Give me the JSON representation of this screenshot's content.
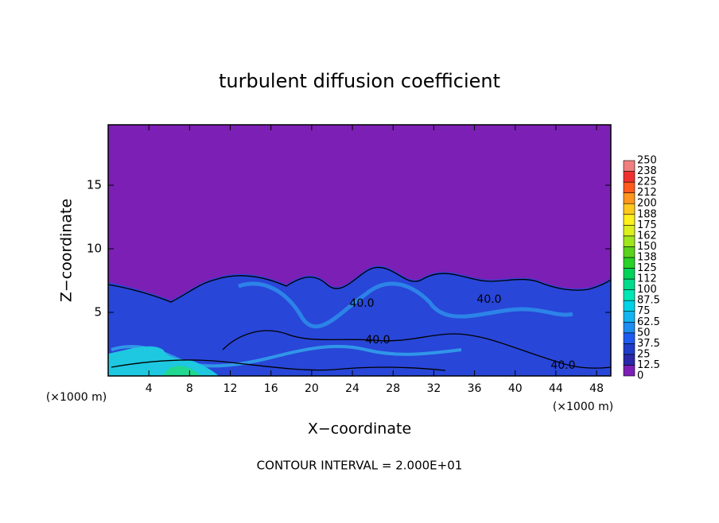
{
  "chart_data": {
    "type": "contour",
    "title": "turbulent diffusion coefficient",
    "xlabel": "X−coordinate",
    "ylabel": "Z−coordinate",
    "x_unit_label": "(×1000 m)",
    "xlim": [
      0,
      49.4
    ],
    "xticks": [
      4,
      8,
      12,
      16,
      20,
      24,
      28,
      32,
      36,
      40,
      44,
      48
    ],
    "ylim": [
      0,
      19.75
    ],
    "yticks": [
      5,
      10,
      15
    ],
    "colorbar_ticks": [
      0,
      12.5,
      25,
      37.5,
      50,
      62.5,
      75,
      87.5,
      100,
      112,
      125,
      138,
      150,
      162,
      175,
      188,
      200,
      212,
      225,
      238,
      250
    ],
    "colorbar_colors": [
      "#7c1fb4",
      "#2a28a8",
      "#1e3cc8",
      "#1e5af0",
      "#1e8cf0",
      "#14b4f0",
      "#00d2e6",
      "#00e6b4",
      "#00dc8c",
      "#00d25a",
      "#28d228",
      "#5ad21e",
      "#a0e61e",
      "#dcf01e",
      "#fff01e",
      "#ffc81e",
      "#ff961e",
      "#ff5a1e",
      "#f03030",
      "#f08080"
    ],
    "contour_labels": [
      "40.0",
      "40.0",
      "40.0",
      "40.0"
    ],
    "footnote": "CONTOUR INTERVAL = 2.000E+01"
  }
}
